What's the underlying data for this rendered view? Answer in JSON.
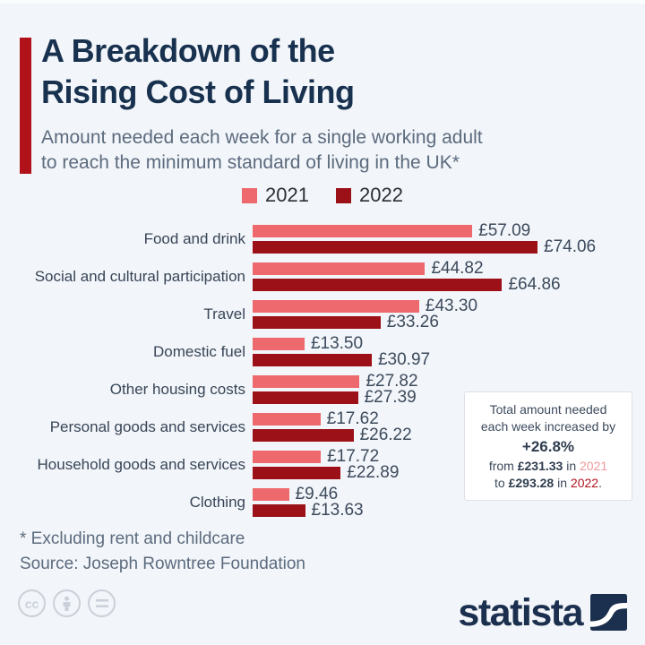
{
  "title": {
    "line1": "A Breakdown of the",
    "line2": "Rising Cost of Living"
  },
  "subtitle": {
    "line1": "Amount needed each week for a single working adult",
    "line2": "to reach the minimum standard of living in the UK*"
  },
  "colors": {
    "accent_red": "#b11219",
    "brand_navy": "#1b2f4e",
    "series_2021": "#ee696d",
    "series_2022": "#9c1017",
    "background": "#f2f5f9"
  },
  "chart_data": {
    "type": "bar",
    "orientation": "horizontal",
    "value_prefix": "£",
    "categories": [
      "Food and drink",
      "Social and cultural participation",
      "Travel",
      "Domestic fuel",
      "Other housing costs",
      "Personal goods and services",
      "Household goods and services",
      "Clothing"
    ],
    "series": [
      {
        "name": "2021",
        "color": "#ee696d",
        "values": [
          57.09,
          44.82,
          43.3,
          13.5,
          27.82,
          17.62,
          17.72,
          9.46
        ]
      },
      {
        "name": "2022",
        "color": "#9c1017",
        "values": [
          74.06,
          64.86,
          33.26,
          30.97,
          27.39,
          26.22,
          22.89,
          13.63
        ]
      }
    ],
    "xlim": [
      0,
      74.06
    ],
    "grid": false,
    "legend_position": "top"
  },
  "legend": [
    {
      "label": "2021",
      "color": "#ee696d"
    },
    {
      "label": "2022",
      "color": "#9c1017"
    }
  ],
  "callout": {
    "line1": "Total amount needed",
    "line2": "each week increased by",
    "percent": "+26.8%",
    "from_label": "from ",
    "from_amount": "£231.33",
    "in_label_1": " in ",
    "year_2021": "2021",
    "to_label": "to ",
    "to_amount": "£293.28",
    "in_label_2": " in ",
    "year_2022": "2022",
    "period": "."
  },
  "footnotes": {
    "note": "* Excluding rent and childcare",
    "source": "Source: Joseph Rowntree Foundation"
  },
  "license": {
    "icons": [
      "cc-icon",
      "attribution-icon",
      "no-derivatives-icon"
    ]
  },
  "branding": {
    "logo_text": "statista"
  }
}
